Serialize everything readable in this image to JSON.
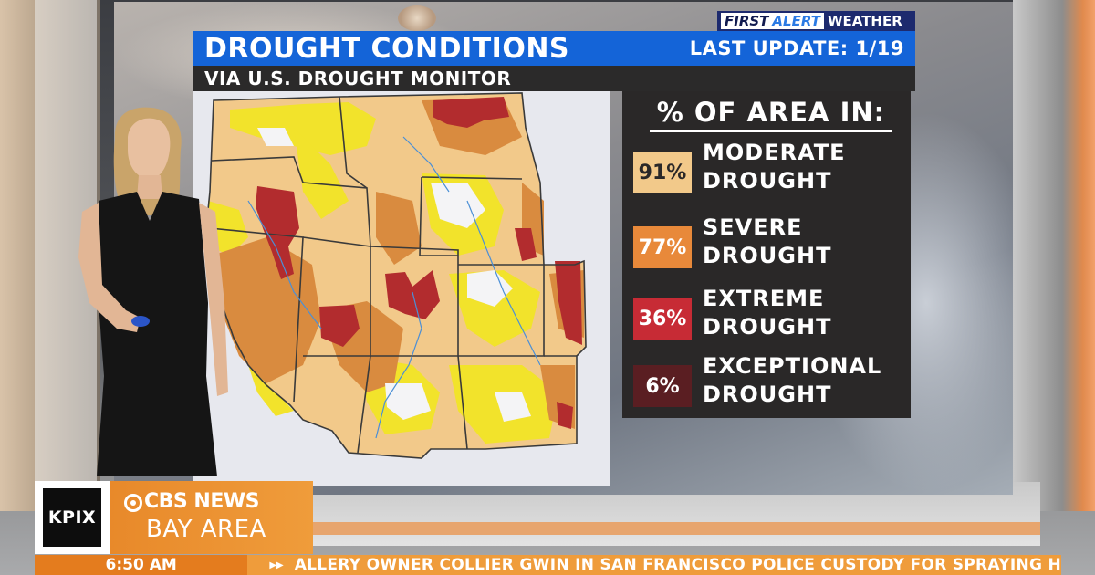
{
  "brand": {
    "first": "FIRST",
    "alert": "ALERT",
    "weather": "WEATHER"
  },
  "header": {
    "title": "DROUGHT CONDITIONS",
    "last_update": "LAST UPDATE: 1/19",
    "source": "VIA U.S. DROUGHT MONITOR"
  },
  "stats": {
    "heading": "% OF AREA IN:",
    "items": [
      {
        "percent": "91%",
        "line1": "MODERATE",
        "line2": "DROUGHT",
        "color": "#f2c98a",
        "text_color": "#2a2828"
      },
      {
        "percent": "77%",
        "line1": "SEVERE",
        "line2": "DROUGHT",
        "color": "#e8893a",
        "text_color": "#ffffff"
      },
      {
        "percent": "36%",
        "line1": "EXTREME",
        "line2": "DROUGHT",
        "color": "#c72b35",
        "text_color": "#ffffff"
      },
      {
        "percent": "6%",
        "line1": "EXCEPTIONAL",
        "line2": "DROUGHT",
        "color": "#5a1e22",
        "text_color": "#ffffff"
      }
    ]
  },
  "map_colors": {
    "background": "#e7e8ee",
    "none": "#f4f4f6",
    "abnormally_dry": "#f2e32b",
    "moderate": "#f2c98a",
    "severe": "#d98b3f",
    "extreme": "#b22c2e",
    "borders": "#3a3a3a",
    "rivers": "#4b8fd6"
  },
  "lower_third": {
    "station": "KPIX",
    "network": "CBS NEWS",
    "region": "BAY AREA",
    "time": "6:50 AM",
    "ticker": "ALLERY OWNER COLLIER GWIN IN SAN FRANCISCO POLICE CUSTODY FOR SPRAYING H"
  }
}
